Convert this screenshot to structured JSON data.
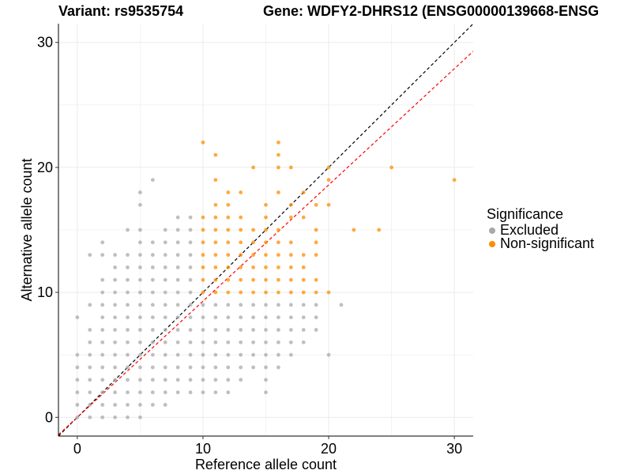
{
  "chart_data": {
    "type": "scatter",
    "title_left": "Variant: rs9535754",
    "title_right": "Gene: WDFY2-DHRS12 (ENSG00000139668-ENSG",
    "xlabel": "Reference allele count",
    "ylabel": "Alternative allele count",
    "xlim": [
      -1.5,
      31.5
    ],
    "ylim": [
      -1.5,
      31.5
    ],
    "xticks": [
      0,
      10,
      20,
      30
    ],
    "yticks": [
      0,
      10,
      20,
      30
    ],
    "grid": true,
    "legend": {
      "title": "Significance",
      "position": "right",
      "entries": [
        {
          "label": "Excluded",
          "color": "#a9a9a9"
        },
        {
          "label": "Non-significant",
          "color": "#ff8c00"
        }
      ]
    },
    "reference_lines": [
      {
        "name": "identity",
        "slope": 1.0,
        "intercept": 0,
        "color": "#000000",
        "style": "dashed"
      },
      {
        "name": "fitted",
        "slope": 0.93,
        "intercept": 0,
        "color": "#ff0000",
        "style": "dashed"
      }
    ],
    "series": [
      {
        "name": "Excluded",
        "color": "#a9a9a9",
        "points": [
          [
            0,
            0
          ],
          [
            0,
            1
          ],
          [
            0,
            2
          ],
          [
            0,
            3
          ],
          [
            0,
            4
          ],
          [
            0,
            5
          ],
          [
            0,
            8
          ],
          [
            1,
            0
          ],
          [
            1,
            1
          ],
          [
            1,
            2
          ],
          [
            1,
            3
          ],
          [
            1,
            4
          ],
          [
            1,
            5
          ],
          [
            1,
            6
          ],
          [
            1,
            7
          ],
          [
            1,
            9
          ],
          [
            1,
            13
          ],
          [
            2,
            0
          ],
          [
            2,
            1
          ],
          [
            2,
            2
          ],
          [
            2,
            3
          ],
          [
            2,
            4
          ],
          [
            2,
            5
          ],
          [
            2,
            6
          ],
          [
            2,
            7
          ],
          [
            2,
            8
          ],
          [
            2,
            9
          ],
          [
            2,
            10
          ],
          [
            2,
            11
          ],
          [
            2,
            13
          ],
          [
            2,
            14
          ],
          [
            3,
            0
          ],
          [
            3,
            1
          ],
          [
            3,
            2
          ],
          [
            3,
            3
          ],
          [
            3,
            4
          ],
          [
            3,
            5
          ],
          [
            3,
            6
          ],
          [
            3,
            7
          ],
          [
            3,
            8
          ],
          [
            3,
            9
          ],
          [
            3,
            10
          ],
          [
            3,
            11
          ],
          [
            3,
            12
          ],
          [
            3,
            13
          ],
          [
            4,
            0
          ],
          [
            4,
            1
          ],
          [
            4,
            2
          ],
          [
            4,
            3
          ],
          [
            4,
            4
          ],
          [
            4,
            5
          ],
          [
            4,
            6
          ],
          [
            4,
            7
          ],
          [
            4,
            8
          ],
          [
            4,
            9
          ],
          [
            4,
            10
          ],
          [
            4,
            11
          ],
          [
            4,
            12
          ],
          [
            4,
            13
          ],
          [
            4,
            15
          ],
          [
            5,
            0
          ],
          [
            5,
            1
          ],
          [
            5,
            2
          ],
          [
            5,
            3
          ],
          [
            5,
            4
          ],
          [
            5,
            5
          ],
          [
            5,
            6
          ],
          [
            5,
            7
          ],
          [
            5,
            8
          ],
          [
            5,
            9
          ],
          [
            5,
            10
          ],
          [
            5,
            11
          ],
          [
            5,
            12
          ],
          [
            5,
            13
          ],
          [
            5,
            14
          ],
          [
            5,
            15
          ],
          [
            5,
            17
          ],
          [
            5,
            18
          ],
          [
            6,
            1
          ],
          [
            6,
            2
          ],
          [
            6,
            3
          ],
          [
            6,
            4
          ],
          [
            6,
            5
          ],
          [
            6,
            6
          ],
          [
            6,
            7
          ],
          [
            6,
            8
          ],
          [
            6,
            9
          ],
          [
            6,
            10
          ],
          [
            6,
            11
          ],
          [
            6,
            12
          ],
          [
            6,
            13
          ],
          [
            6,
            14
          ],
          [
            6,
            19
          ],
          [
            7,
            1
          ],
          [
            7,
            2
          ],
          [
            7,
            3
          ],
          [
            7,
            4
          ],
          [
            7,
            5
          ],
          [
            7,
            6
          ],
          [
            7,
            7
          ],
          [
            7,
            8
          ],
          [
            7,
            9
          ],
          [
            7,
            10
          ],
          [
            7,
            11
          ],
          [
            7,
            12
          ],
          [
            7,
            13
          ],
          [
            7,
            14
          ],
          [
            7,
            15
          ],
          [
            8,
            2
          ],
          [
            8,
            3
          ],
          [
            8,
            4
          ],
          [
            8,
            5
          ],
          [
            8,
            6
          ],
          [
            8,
            7
          ],
          [
            8,
            8
          ],
          [
            8,
            9
          ],
          [
            8,
            10
          ],
          [
            8,
            11
          ],
          [
            8,
            12
          ],
          [
            8,
            13
          ],
          [
            8,
            14
          ],
          [
            8,
            15
          ],
          [
            8,
            16
          ],
          [
            9,
            2
          ],
          [
            9,
            3
          ],
          [
            9,
            4
          ],
          [
            9,
            5
          ],
          [
            9,
            6
          ],
          [
            9,
            7
          ],
          [
            9,
            8
          ],
          [
            9,
            9
          ],
          [
            9,
            10
          ],
          [
            9,
            11
          ],
          [
            9,
            12
          ],
          [
            9,
            13
          ],
          [
            9,
            14
          ],
          [
            9,
            15
          ],
          [
            9,
            16
          ],
          [
            10,
            2
          ],
          [
            10,
            3
          ],
          [
            10,
            4
          ],
          [
            10,
            5
          ],
          [
            10,
            6
          ],
          [
            10,
            7
          ],
          [
            10,
            8
          ],
          [
            10,
            9
          ],
          [
            11,
            2
          ],
          [
            11,
            3
          ],
          [
            11,
            4
          ],
          [
            11,
            5
          ],
          [
            11,
            6
          ],
          [
            11,
            7
          ],
          [
            11,
            8
          ],
          [
            11,
            9
          ],
          [
            12,
            2
          ],
          [
            12,
            3
          ],
          [
            12,
            4
          ],
          [
            12,
            5
          ],
          [
            12,
            6
          ],
          [
            12,
            7
          ],
          [
            12,
            8
          ],
          [
            12,
            9
          ],
          [
            13,
            3
          ],
          [
            13,
            4
          ],
          [
            13,
            5
          ],
          [
            13,
            6
          ],
          [
            13,
            7
          ],
          [
            13,
            8
          ],
          [
            13,
            9
          ],
          [
            14,
            4
          ],
          [
            14,
            5
          ],
          [
            14,
            6
          ],
          [
            14,
            7
          ],
          [
            14,
            8
          ],
          [
            14,
            9
          ],
          [
            15,
            2
          ],
          [
            15,
            3
          ],
          [
            15,
            4
          ],
          [
            15,
            5
          ],
          [
            15,
            6
          ],
          [
            15,
            7
          ],
          [
            15,
            8
          ],
          [
            15,
            9
          ],
          [
            16,
            4
          ],
          [
            16,
            5
          ],
          [
            16,
            6
          ],
          [
            16,
            7
          ],
          [
            16,
            8
          ],
          [
            16,
            9
          ],
          [
            17,
            5
          ],
          [
            17,
            6
          ],
          [
            17,
            7
          ],
          [
            17,
            8
          ],
          [
            17,
            9
          ],
          [
            18,
            6
          ],
          [
            18,
            7
          ],
          [
            18,
            8
          ],
          [
            18,
            9
          ],
          [
            19,
            7
          ],
          [
            19,
            8
          ],
          [
            19,
            9
          ],
          [
            20,
            5
          ],
          [
            21,
            9
          ]
        ]
      },
      {
        "name": "Non-significant",
        "color": "#ff8c00",
        "points": [
          [
            10,
            10
          ],
          [
            10,
            11
          ],
          [
            10,
            12
          ],
          [
            10,
            13
          ],
          [
            10,
            14
          ],
          [
            10,
            15
          ],
          [
            10,
            16
          ],
          [
            10,
            22
          ],
          [
            11,
            10
          ],
          [
            11,
            11
          ],
          [
            11,
            12
          ],
          [
            11,
            13
          ],
          [
            11,
            14
          ],
          [
            11,
            15
          ],
          [
            11,
            16
          ],
          [
            11,
            17
          ],
          [
            11,
            19
          ],
          [
            11,
            21
          ],
          [
            12,
            10
          ],
          [
            12,
            11
          ],
          [
            12,
            12
          ],
          [
            12,
            13
          ],
          [
            12,
            14
          ],
          [
            12,
            15
          ],
          [
            12,
            16
          ],
          [
            12,
            17
          ],
          [
            12,
            18
          ],
          [
            13,
            10
          ],
          [
            13,
            11
          ],
          [
            13,
            12
          ],
          [
            13,
            13
          ],
          [
            13,
            14
          ],
          [
            13,
            15
          ],
          [
            13,
            16
          ],
          [
            13,
            18
          ],
          [
            14,
            10
          ],
          [
            14,
            11
          ],
          [
            14,
            12
          ],
          [
            14,
            13
          ],
          [
            14,
            14
          ],
          [
            14,
            15
          ],
          [
            14,
            20
          ],
          [
            15,
            10
          ],
          [
            15,
            11
          ],
          [
            15,
            12
          ],
          [
            15,
            13
          ],
          [
            15,
            14
          ],
          [
            15,
            15
          ],
          [
            15,
            16
          ],
          [
            15,
            17
          ],
          [
            16,
            10
          ],
          [
            16,
            11
          ],
          [
            16,
            12
          ],
          [
            16,
            13
          ],
          [
            16,
            14
          ],
          [
            16,
            15
          ],
          [
            16,
            18
          ],
          [
            16,
            20
          ],
          [
            16,
            21
          ],
          [
            16,
            22
          ],
          [
            17,
            10
          ],
          [
            17,
            11
          ],
          [
            17,
            12
          ],
          [
            17,
            13
          ],
          [
            17,
            14
          ],
          [
            17,
            16
          ],
          [
            17,
            17
          ],
          [
            17,
            20
          ],
          [
            18,
            10
          ],
          [
            18,
            11
          ],
          [
            18,
            12
          ],
          [
            18,
            13
          ],
          [
            18,
            16
          ],
          [
            18,
            18
          ],
          [
            19,
            10
          ],
          [
            19,
            11
          ],
          [
            19,
            13
          ],
          [
            19,
            14
          ],
          [
            19,
            15
          ],
          [
            19,
            17
          ],
          [
            20,
            10
          ],
          [
            20,
            17
          ],
          [
            20,
            19
          ],
          [
            20,
            20
          ],
          [
            22,
            15
          ],
          [
            24,
            15
          ],
          [
            25,
            20
          ],
          [
            30,
            19
          ]
        ]
      }
    ]
  }
}
